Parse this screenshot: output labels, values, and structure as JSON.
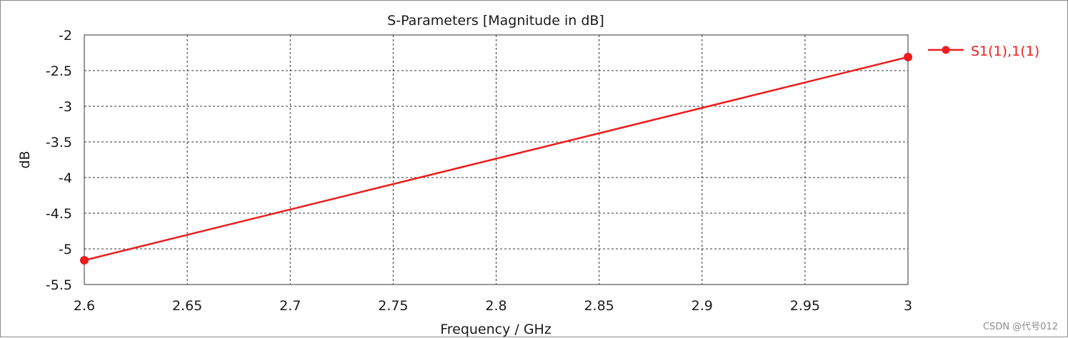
{
  "chart_data": {
    "type": "line",
    "title": "S-Parameters [Magnitude in dB]",
    "xlabel": "Frequency / GHz",
    "ylabel": "dB",
    "xlim": [
      2.6,
      3.0
    ],
    "ylim": [
      -5.5,
      -2.0
    ],
    "x_ticks": [
      "2.6",
      "2.65",
      "2.7",
      "2.75",
      "2.8",
      "2.85",
      "2.9",
      "2.95",
      "3"
    ],
    "y_ticks": [
      "-2",
      "-2.5",
      "-3",
      "-3.5",
      "-4",
      "-4.5",
      "-5",
      "-5.5"
    ],
    "x_tick_values": [
      2.6,
      2.65,
      2.7,
      2.75,
      2.8,
      2.85,
      2.9,
      2.95,
      3.0
    ],
    "y_tick_values": [
      -2.0,
      -2.5,
      -3.0,
      -3.5,
      -4.0,
      -4.5,
      -5.0,
      -5.5
    ],
    "grid": true,
    "legend_position": "right",
    "series": [
      {
        "name": "S1(1),1(1)",
        "color": "#ee1c1c",
        "x": [
          2.6,
          3.0
        ],
        "y": [
          -5.16,
          -2.31
        ],
        "markers": "endpoints"
      }
    ]
  },
  "watermark": "CSDN @代号012"
}
